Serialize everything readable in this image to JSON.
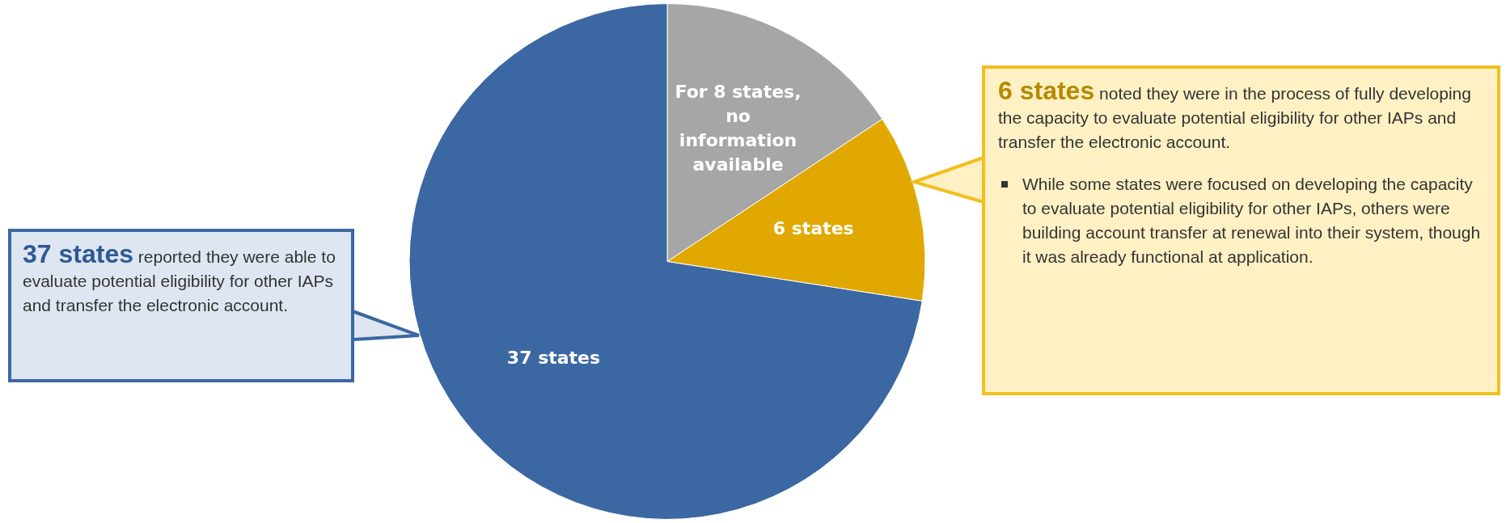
{
  "chart_data": {
    "type": "pie",
    "categories": [
      "For 8 states, no information available",
      "6 states",
      "37 states"
    ],
    "values": [
      8,
      6,
      37
    ],
    "colors": [
      "#a6a6a6",
      "#e0a800",
      "#3b67a3"
    ],
    "legend": false,
    "annotations": [
      "37 states",
      "reported they were able to evaluate potential eligibility for other IAPs and transfer the electronic account.",
      "6 states",
      "noted they were in the process of fully developing the capacity to evaluate potential eligibility for other IAPs and transfer the electronic account.",
      "While some states were focused on developing the capacity to evaluate potential eligibility for other IAPs, others were building account transfer  at renewal into their system, though it was already functional at application."
    ]
  }
}
